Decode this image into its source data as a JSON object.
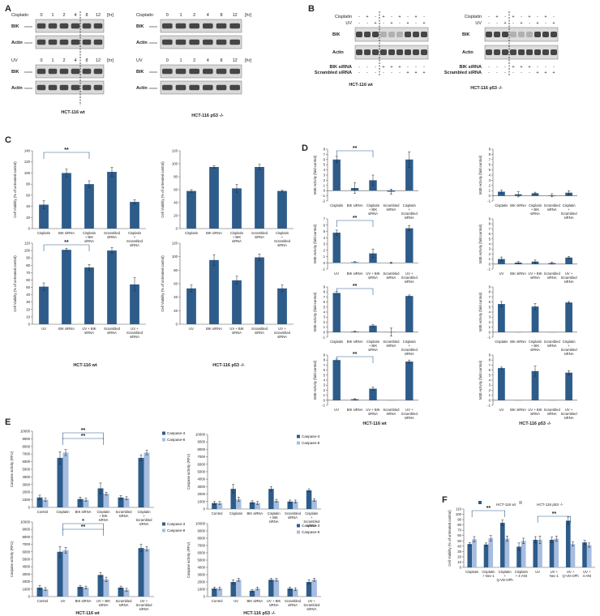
{
  "panels": {
    "A": {
      "letter": "A",
      "top_rows": [
        {
          "treatment": "Cisplatin",
          "unit": "[hr]",
          "times": [
            "0",
            "1",
            "2",
            "4",
            "8",
            "12"
          ],
          "bands": [
            "BIK",
            "Actin"
          ]
        },
        {
          "treatment": "UV",
          "unit": "[hr]",
          "times": [
            "0",
            "1",
            "2",
            "4",
            "8",
            "12"
          ],
          "bands": [
            "BIK",
            "Actin"
          ]
        }
      ],
      "right_rows": [
        {
          "treatment": "Cisplatin",
          "unit": "[hr]",
          "times": [
            "0",
            "1",
            "2",
            "4",
            "8",
            "12"
          ],
          "bands": [
            "BIK",
            "Actin"
          ]
        },
        {
          "treatment": "UV",
          "unit": "[hr]",
          "times": [
            "0",
            "1",
            "2",
            "4",
            "8",
            "12"
          ],
          "bands": [
            "BIK",
            "Actin"
          ]
        }
      ],
      "label_left": "HCT-116 wt",
      "label_right": "HCT-116 p53 -/-"
    },
    "B": {
      "letter": "B",
      "rows": [
        "Cisplatin",
        "UV"
      ],
      "bands": [
        "BIK",
        "Actin"
      ],
      "siRNA_rows": [
        "BIK siRNA",
        "Scrambled siRNA"
      ],
      "cis_signs": [
        "-",
        "+",
        "-",
        "+",
        "-",
        "+",
        "-",
        "+",
        "-"
      ],
      "uv_signs": [
        "-",
        "-",
        "+",
        "-",
        "+",
        "-",
        "+",
        "-",
        "+"
      ],
      "bik_signs": [
        "-",
        "-",
        "-",
        "+",
        "+",
        "+",
        "-",
        "-",
        "-"
      ],
      "scr_signs": [
        "-",
        "-",
        "-",
        "-",
        "-",
        "-",
        "+",
        "+",
        "+"
      ],
      "label_left": "HCT-116 wt",
      "label_right": "HCT-116 p53 -/-"
    },
    "C": {
      "letter": "C",
      "label_left": "HCT-116 wt",
      "label_right": "HCT-116 p53 -/-"
    },
    "D": {
      "letter": "D",
      "label_left": "HCT-116 wt",
      "label_right": "HCT-116 p53 -/-"
    },
    "E": {
      "letter": "E",
      "label_left": "HCT-116 wt",
      "label_right": "HCT-116 p53 -/-"
    },
    "F": {
      "letter": "F"
    }
  },
  "colors": {
    "dark": "#2e5c8a",
    "light": "#a6bde0",
    "blot": "#2a2a2a",
    "bg": "#ffffff"
  },
  "chart_data": [
    {
      "id": "C1",
      "type": "bar",
      "ylabel": "Cell Viability (% of untreated control)",
      "ylim": [
        0,
        140
      ],
      "yticks": [
        0,
        20,
        40,
        60,
        80,
        100,
        120,
        140
      ],
      "categories": [
        "Cisplatin",
        "BIK siRNA",
        "Cisplatin + BIK siRNA",
        "Scrambled siRNA",
        "Cisplatin + Scrambled siRNA"
      ],
      "values": [
        43,
        100,
        80,
        102,
        48
      ],
      "errors": [
        7,
        7,
        6,
        8,
        4
      ],
      "sig": [
        {
          "from": 0,
          "to": 2,
          "label": "**"
        }
      ]
    },
    {
      "id": "C2",
      "type": "bar",
      "ylabel": "Cell Viability (% of untreated control)",
      "ylim": [
        0,
        120
      ],
      "yticks": [
        0,
        20,
        40,
        60,
        80,
        100,
        120
      ],
      "categories": [
        "Cisplatin",
        "BIK siRNA",
        "Cisplatin + BIK siRNA",
        "Scrambled siRNA",
        "Cisplatin + Scrambled siRNA"
      ],
      "values": [
        58,
        95,
        62,
        95,
        58
      ],
      "errors": [
        2,
        2,
        6,
        4,
        1
      ],
      "sig": []
    },
    {
      "id": "C3",
      "type": "bar",
      "ylabel": "Cell Viability (% of untreated control)",
      "ylim": [
        0,
        110
      ],
      "yticks": [
        0,
        10,
        20,
        30,
        40,
        50,
        60,
        70,
        80,
        90,
        100,
        110
      ],
      "categories": [
        "UV",
        "BIK siRNA",
        "UV + BIK siRNA",
        "Scrambled siRNA",
        "UV + Scrambled siRNA"
      ],
      "values": [
        51,
        101,
        77,
        100,
        54
      ],
      "errors": [
        5,
        2,
        4,
        4,
        9
      ],
      "sig": [
        {
          "from": 0,
          "to": 2,
          "label": "**"
        }
      ]
    },
    {
      "id": "C4",
      "type": "bar",
      "ylabel": "Cell Viability (% of untreated control)",
      "ylim": [
        0,
        120
      ],
      "yticks": [
        0,
        20,
        40,
        60,
        80,
        100,
        120
      ],
      "categories": [
        "UV",
        "BIK siRNA",
        "UV + BIK siRNA",
        "Scrambled siRNA",
        "UV + Scrambled siRNA"
      ],
      "values": [
        53,
        95,
        65,
        99,
        53
      ],
      "errors": [
        5,
        8,
        6,
        5,
        5
      ],
      "sig": []
    },
    {
      "id": "D1",
      "type": "bar",
      "ylabel": "M30 Activity (fold control)",
      "ylim": [
        -2,
        8
      ],
      "yticks": [
        -2,
        -1,
        0,
        1,
        2,
        3,
        4,
        5,
        6,
        7,
        8
      ],
      "categories": [
        "Cisplatin",
        "BIK siRNA",
        "Cisplatin + BIK siRNA",
        "Scrambled siRNA",
        "Cisplatin + Scrambled siRNA"
      ],
      "values": [
        6,
        0.5,
        2,
        -0.2,
        6
      ],
      "errors": [
        0.6,
        1,
        1,
        0.5,
        1.5
      ],
      "sig": [
        {
          "from": 0,
          "to": 2,
          "label": "**"
        }
      ]
    },
    {
      "id": "D2",
      "type": "bar",
      "ylabel": "M30 Activity (fold control)",
      "ylim": [
        -1,
        9
      ],
      "yticks": [
        -1,
        0,
        1,
        2,
        3,
        4,
        5,
        6,
        7,
        8,
        9
      ],
      "categories": [
        "Cisplatin",
        "BIK siRNA",
        "Cisplatin + BIK siRNA",
        "Scrambled siRNA",
        "Cisplatin + Scrambled siRNA"
      ],
      "values": [
        0.8,
        0.3,
        0.5,
        0.1,
        0.6
      ],
      "errors": [
        0.3,
        0.5,
        0.2,
        0.3,
        0.4
      ],
      "sig": []
    },
    {
      "id": "D3",
      "type": "bar",
      "ylabel": "M30 Activity (fold control)",
      "ylim": [
        -1,
        7
      ],
      "yticks": [
        -1,
        0,
        1,
        2,
        3,
        4,
        5,
        6,
        7
      ],
      "categories": [
        "UV",
        "BIK siRNA",
        "UV + BIK siRNA",
        "Scrambled siRNA",
        "UV + Scrambled siRNA"
      ],
      "values": [
        4.8,
        0.1,
        1.5,
        0,
        5.5
      ],
      "errors": [
        0.4,
        0.1,
        0.7,
        0.1,
        0.4
      ],
      "sig": [
        {
          "from": 0,
          "to": 2,
          "label": "**"
        }
      ]
    },
    {
      "id": "D4",
      "type": "bar",
      "ylabel": "M30 Activity (fold control)",
      "ylim": [
        -1,
        9
      ],
      "yticks": [
        -1,
        0,
        1,
        2,
        3,
        4,
        5,
        6,
        7,
        8,
        9
      ],
      "categories": [
        "UV",
        "BIK siRNA",
        "UV + BIK siRNA",
        "Scrambled siRNA",
        "UV + Scrambled siRNA"
      ],
      "values": [
        1,
        0.3,
        0.5,
        0.2,
        1.3
      ],
      "errors": [
        0.4,
        0.2,
        0.3,
        0.2,
        0.2
      ],
      "sig": []
    },
    {
      "id": "D5",
      "type": "bar",
      "ylabel": "M30 Activity (fold control)",
      "ylim": [
        -1,
        9
      ],
      "yticks": [
        -1,
        0,
        1,
        2,
        3,
        4,
        5,
        6,
        7,
        8,
        9
      ],
      "categories": [
        "Cisplatin",
        "BIK siRNA",
        "Cisplatin + BIK siRNA",
        "Scrambled siRNA",
        "Cisplatin + Scrambled siRNA"
      ],
      "values": [
        7.8,
        0.1,
        1.3,
        0,
        7.2
      ],
      "errors": [
        0.3,
        0.1,
        0.2,
        0.8,
        0.2
      ],
      "sig": [
        {
          "from": 0,
          "to": 2,
          "label": "**"
        }
      ]
    },
    {
      "id": "D6",
      "type": "bar",
      "ylabel": "M30 Activity (fold control)",
      "ylim": [
        -1,
        9
      ],
      "yticks": [
        -1,
        0,
        1,
        2,
        3,
        4,
        5,
        6,
        7,
        8,
        9
      ],
      "categories": [
        "Cisplatin",
        "BIK siRNA",
        "Cisplatin + BIK siRNA",
        "Scrambled siRNA",
        "Cisplatin + Scrambled siRNA"
      ],
      "values": [
        5.6,
        0,
        5.1,
        0,
        5.9
      ],
      "errors": [
        0.5,
        0,
        0.6,
        0,
        0.2
      ],
      "sig": []
    },
    {
      "id": "D7",
      "type": "bar",
      "ylabel": "M30 Activity (fold control)",
      "ylim": [
        -1,
        9
      ],
      "yticks": [
        -1,
        0,
        1,
        2,
        3,
        4,
        5,
        6,
        7,
        8,
        9
      ],
      "categories": [
        "UV",
        "BIK siRNA",
        "UV + BIK siRNA",
        "Scrambled siRNA",
        "UV + Scrambled siRNA"
      ],
      "values": [
        8,
        0.2,
        2.3,
        0,
        7.7
      ],
      "errors": [
        0.2,
        0.1,
        0.3,
        0,
        0.3
      ],
      "sig": [
        {
          "from": 0,
          "to": 2,
          "label": "**"
        }
      ]
    },
    {
      "id": "D8",
      "type": "bar",
      "ylabel": "M30 Activity (fold control)",
      "ylim": [
        -1,
        9
      ],
      "yticks": [
        -1,
        0,
        1,
        2,
        3,
        4,
        5,
        6,
        7,
        8,
        9
      ],
      "categories": [
        "UV",
        "BIK siRNA",
        "UV + BIK siRNA",
        "Scrambled siRNA",
        "UV + Scrambled siRNA"
      ],
      "values": [
        6.4,
        0,
        5.8,
        0,
        5.5
      ],
      "errors": [
        0.2,
        0,
        1,
        0,
        0.4
      ],
      "sig": []
    },
    {
      "id": "E1",
      "type": "bar",
      "ylabel": "Caspase activity (RFU)",
      "ylim": [
        0,
        10000
      ],
      "yticks": [
        0,
        1000,
        2000,
        3000,
        4000,
        5000,
        6000,
        7000,
        8000,
        9000,
        10000
      ],
      "legend": [
        "Caspase-3",
        "Caspase-8"
      ],
      "categories": [
        "Control",
        "Cisplatin",
        "BIK siRNA",
        "Cisplatin + BIK siRNA",
        "Scrambled siRNA",
        "Cisplatin + Scrambled siRNA"
      ],
      "series": [
        {
          "name": "Caspase-3",
          "values": [
            1300,
            6500,
            1100,
            2500,
            1300,
            6500
          ],
          "errors": [
            300,
            800,
            250,
            700,
            250,
            400
          ]
        },
        {
          "name": "Caspase-8",
          "values": [
            1000,
            7200,
            1000,
            1800,
            1200,
            7200
          ],
          "errors": [
            200,
            400,
            200,
            200,
            200,
            300
          ]
        }
      ],
      "sig": [
        {
          "from": 1,
          "to": 3,
          "label": "**"
        },
        {
          "from": 1,
          "to": 3,
          "label": "**"
        }
      ]
    },
    {
      "id": "E2",
      "type": "bar",
      "ylabel": "Caspase activity (RFU)",
      "ylim": [
        0,
        10000
      ],
      "yticks": [
        0,
        1000,
        2000,
        3000,
        4000,
        5000,
        6000,
        7000,
        8000,
        9000,
        10000
      ],
      "legend": [
        "Caspase-3",
        "Caspase-8"
      ],
      "categories": [
        "Control",
        "Cisplatin",
        "BIK siRNA",
        "Cisplatin + BIK siRNA",
        "Scrambled siRNA",
        "Cisplatin + Scrambled siRNA"
      ],
      "series": [
        {
          "name": "Caspase-3",
          "values": [
            800,
            2700,
            900,
            2700,
            1000,
            2500
          ],
          "errors": [
            200,
            600,
            200,
            300,
            200,
            200
          ]
        },
        {
          "name": "Caspase-8",
          "values": [
            800,
            1300,
            800,
            1100,
            1000,
            1200
          ],
          "errors": [
            200,
            300,
            200,
            200,
            200,
            200
          ]
        }
      ],
      "sig": []
    },
    {
      "id": "E3",
      "type": "bar",
      "ylabel": "Caspase activity (RFU)",
      "ylim": [
        0,
        10000
      ],
      "yticks": [
        0,
        1000,
        2000,
        3000,
        4000,
        5000,
        6000,
        7000,
        8000,
        9000,
        10000
      ],
      "legend": [
        "Caspase-3",
        "Caspase-9"
      ],
      "categories": [
        "Control",
        "UV",
        "BIK siRNA",
        "UV + BIK siRNA",
        "Scrambled siRNA",
        "UV + Scrambled siRNA"
      ],
      "series": [
        {
          "name": "Caspase-3",
          "values": [
            1200,
            6000,
            1300,
            2900,
            1200,
            6500
          ],
          "errors": [
            300,
            700,
            200,
            300,
            200,
            500
          ]
        },
        {
          "name": "Caspase-9",
          "values": [
            1000,
            6200,
            1200,
            2300,
            900,
            6400
          ],
          "errors": [
            200,
            400,
            200,
            300,
            200,
            300
          ]
        }
      ],
      "sig": [
        {
          "from": 1,
          "to": 3,
          "label": "*"
        },
        {
          "from": 1,
          "to": 3,
          "label": "**"
        }
      ]
    },
    {
      "id": "E4",
      "type": "bar",
      "ylabel": "Caspase activity (RFU)",
      "ylim": [
        0,
        10000
      ],
      "yticks": [
        0,
        1000,
        2000,
        3000,
        4000,
        5000,
        6000,
        7000,
        8000,
        9000,
        10000
      ],
      "legend": [
        "Caspase-3",
        "Caspase-9"
      ],
      "categories": [
        "Control",
        "UV",
        "BIK siRNA",
        "UV + BIK siRNA",
        "Scrambled siRNA",
        "UV + Scrambled siRNA"
      ],
      "series": [
        {
          "name": "Caspase-3",
          "values": [
            1100,
            2000,
            800,
            2300,
            1100,
            2000
          ],
          "errors": [
            200,
            300,
            150,
            200,
            200,
            300
          ]
        },
        {
          "name": "Caspase-9",
          "values": [
            1100,
            2300,
            1100,
            2300,
            1000,
            2300
          ],
          "errors": [
            200,
            200,
            200,
            200,
            200,
            200
          ]
        }
      ],
      "sig": []
    },
    {
      "id": "F",
      "type": "bar",
      "ylabel": "Cell Viability (% of untreated control)",
      "ylim": [
        0,
        110
      ],
      "yticks": [
        0,
        10,
        20,
        30,
        40,
        50,
        60,
        70,
        80,
        90,
        100,
        110
      ],
      "legend": [
        "HCT-116 wt",
        "HCT-116 p53 -/-"
      ],
      "categories": [
        "Cisplatin",
        "Cisplatin + Nec-1",
        "Cisplatin + Q-VD-OPh",
        "Cisplatin + 4-ANI",
        "UV",
        "UV + Nec-1",
        "UV + Q-VD-OPh",
        "UV + 4-ANI"
      ],
      "series": [
        {
          "name": "HCT-116 wt",
          "values": [
            44,
            43,
            84,
            39,
            52,
            52,
            88,
            47
          ],
          "errors": [
            3,
            3,
            5,
            7,
            6,
            5,
            7,
            4
          ]
        },
        {
          "name": "HCT-116 p53 -/-",
          "values": [
            53,
            55,
            54,
            50,
            52,
            54,
            44,
            42
          ],
          "errors": [
            5,
            5,
            5,
            5,
            7,
            5,
            4,
            4
          ]
        }
      ],
      "sig": [
        {
          "from": 0,
          "to": 2,
          "label": "**"
        },
        {
          "from": 4,
          "to": 6,
          "label": "**"
        }
      ]
    }
  ]
}
